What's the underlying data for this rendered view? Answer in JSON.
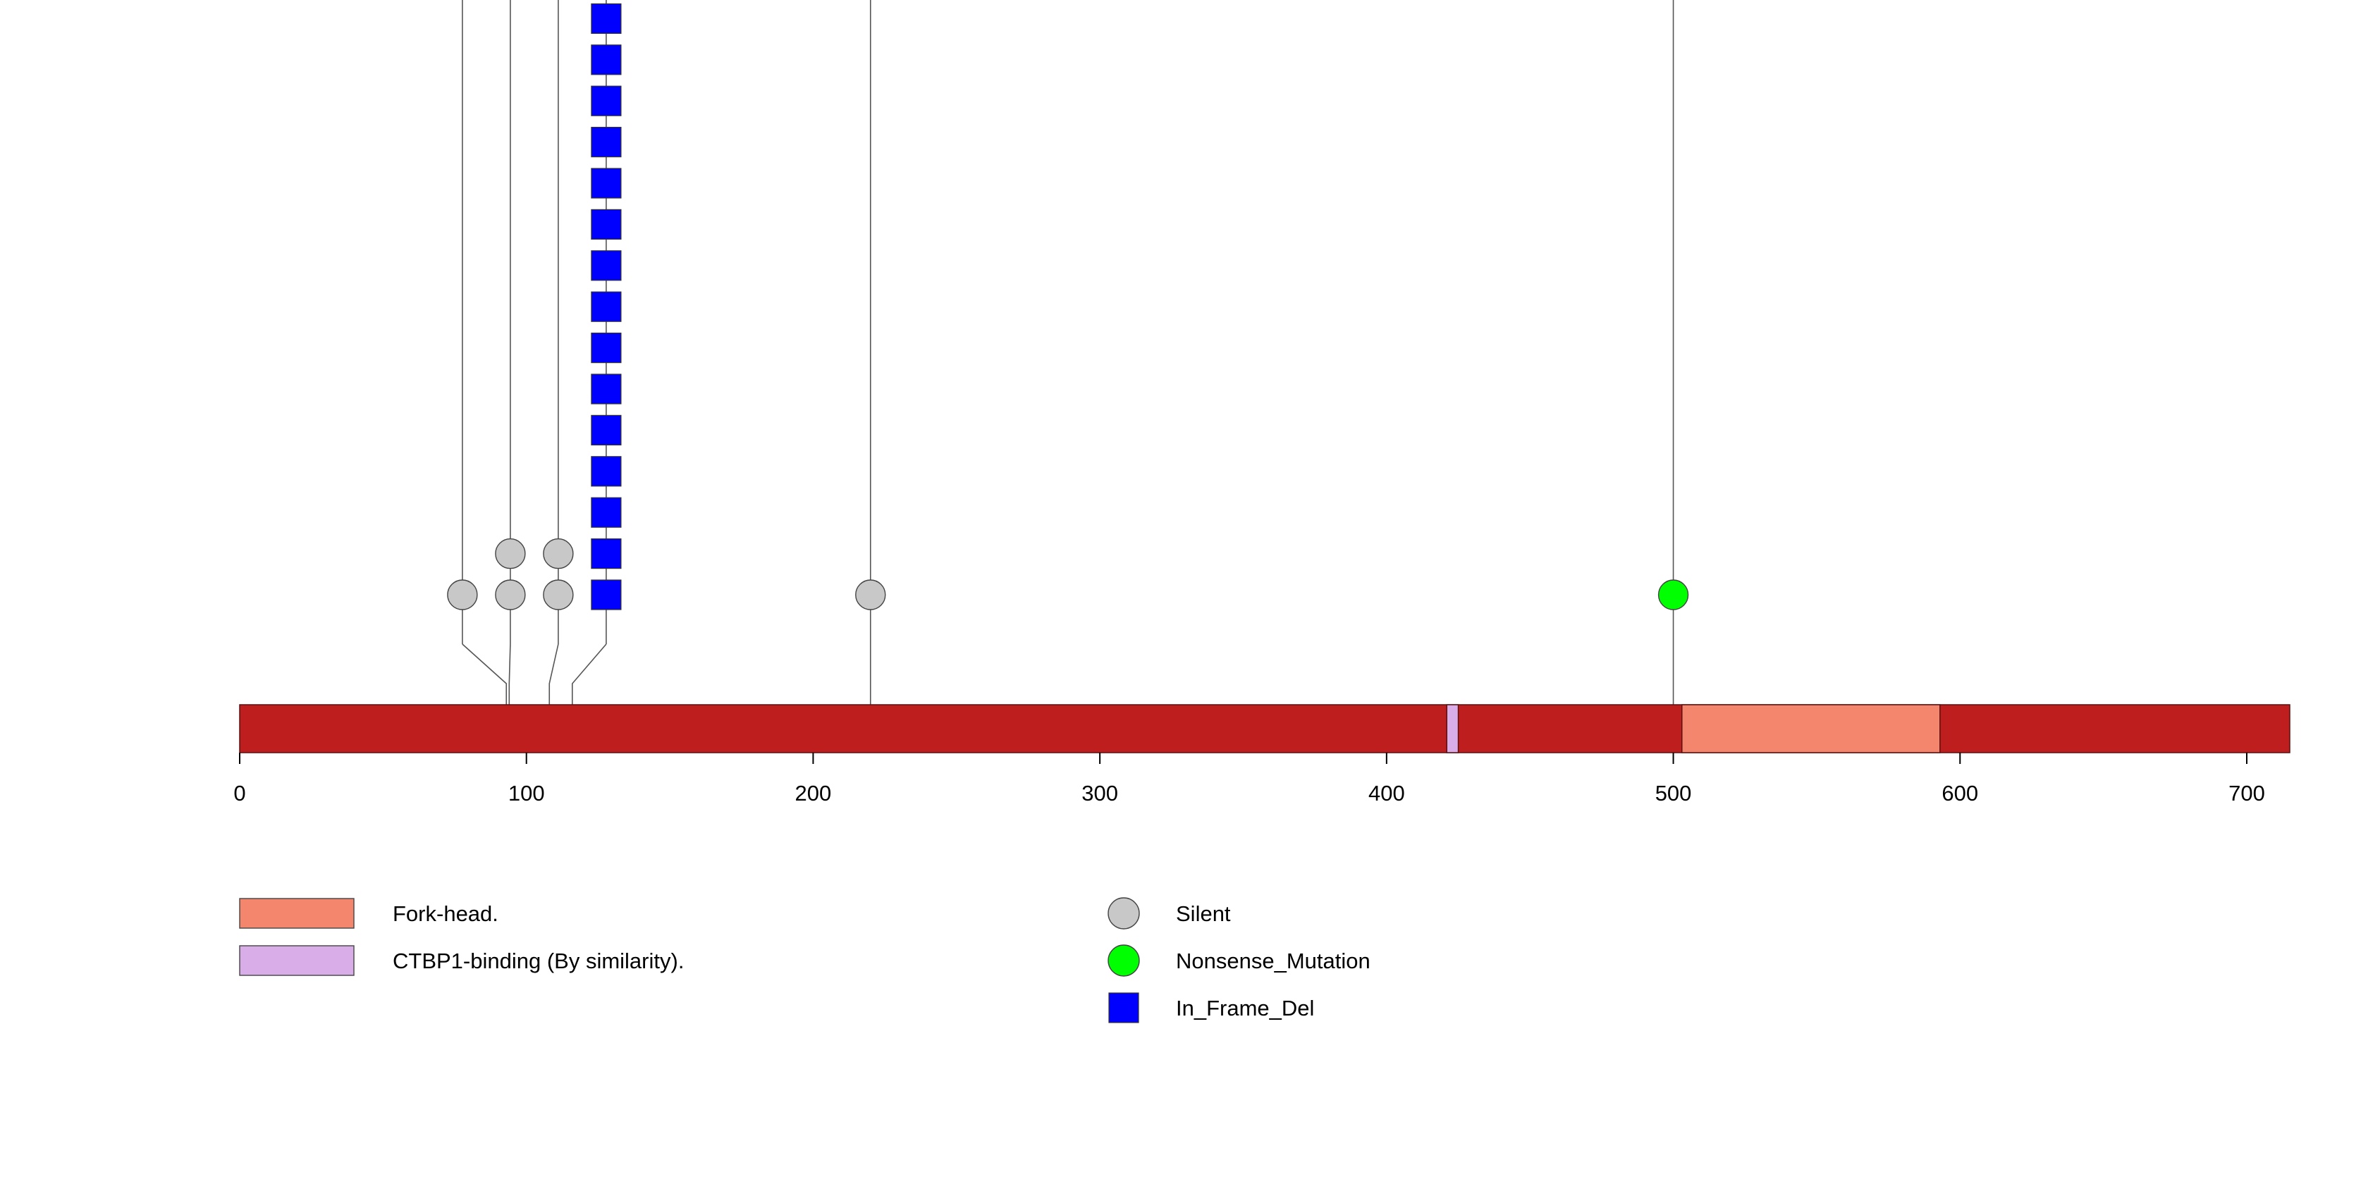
{
  "chart_data": {
    "type": "lollipop",
    "title": "",
    "xlabel": "",
    "ylabel": "",
    "protein_length": 715,
    "xlim": [
      0,
      715
    ],
    "x_ticks": [
      {
        "value": 0,
        "label": "0"
      },
      {
        "value": 100,
        "label": "100"
      },
      {
        "value": 200,
        "label": "200"
      },
      {
        "value": 300,
        "label": "300"
      },
      {
        "value": 400,
        "label": "400"
      },
      {
        "value": 500,
        "label": "500"
      },
      {
        "value": 600,
        "label": "600"
      },
      {
        "value": 700,
        "label": "700"
      }
    ],
    "colors": {
      "backbone": "#BE1E1E",
      "Silent": "#C8C8C8",
      "Nonsense_Mutation": "#00FF00",
      "In_Frame_Del": "#0000FF",
      "Fork-head.": "#F4866D",
      "CTBP1-binding (By similarity).": "#D9AEE8"
    },
    "domains": [
      {
        "name": "Fork-head.",
        "start": 503,
        "end": 593,
        "color": "#F4866D"
      },
      {
        "name": "CTBP1-binding (By similarity).",
        "start": 421,
        "end": 425,
        "color": "#D9AEE8"
      }
    ],
    "mutations": [
      {
        "position": 93,
        "type": "Silent",
        "count": 1
      },
      {
        "position": 94,
        "type": "Silent",
        "count": 2
      },
      {
        "position": 108,
        "type": "Silent",
        "count": 2
      },
      {
        "position": 116,
        "type": "In_Frame_Del",
        "count": 15
      },
      {
        "position": 220,
        "type": "Silent",
        "count": 1
      },
      {
        "position": 500,
        "type": "Nonsense_Mutation",
        "count": 1
      }
    ],
    "legend": {
      "placement": "bottom",
      "domains": [
        {
          "label": "Fork-head.",
          "color": "#F4866D"
        },
        {
          "label": "CTBP1-binding (By similarity).",
          "color": "#D9AEE8"
        }
      ],
      "mutation_types": [
        {
          "label": "Silent",
          "shape": "circle",
          "color": "#C8C8C8"
        },
        {
          "label": "Nonsense_Mutation",
          "shape": "circle",
          "color": "#00FF00"
        },
        {
          "label": "In_Frame_Del",
          "shape": "square",
          "color": "#0000FF"
        }
      ]
    }
  }
}
